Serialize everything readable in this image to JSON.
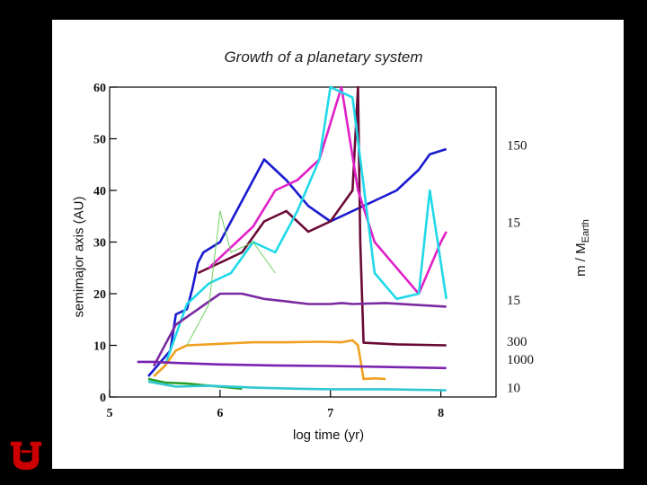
{
  "chart_data": {
    "type": "line",
    "title": "Growth of a planetary system",
    "xlabel": "log time (yr)",
    "ylabel": "semimajor axis (AU)",
    "y2label": "m / M",
    "y2label_sub": "Earth",
    "xlim": [
      5,
      8.5
    ],
    "ylim": [
      0,
      60
    ],
    "xticks": [
      5,
      6,
      7,
      8
    ],
    "yticks": [
      0,
      10,
      20,
      30,
      40,
      50,
      60
    ],
    "grid": false,
    "mass_annotations": [
      {
        "label": "150",
        "y": 49
      },
      {
        "label": "15",
        "y": 34
      },
      {
        "label": "15",
        "y": 19
      },
      {
        "label": "300",
        "y": 11
      },
      {
        "label": "1000",
        "y": 7.5
      },
      {
        "label": "10",
        "y": 2
      }
    ],
    "series": [
      {
        "name": "blue",
        "color": "#1a1ad0",
        "x": [
          5.35,
          5.55,
          5.6,
          5.7,
          5.75,
          5.8,
          5.85,
          6.0,
          6.1,
          6.2,
          6.4,
          6.6,
          6.8,
          7.0,
          7.2,
          7.4,
          7.6,
          7.8,
          7.9,
          8.05
        ],
        "y": [
          4,
          9,
          16,
          17,
          21,
          26,
          28,
          30,
          34,
          38,
          46,
          42,
          37,
          34,
          36,
          38,
          40,
          44,
          47,
          48
        ]
      },
      {
        "name": "darkred",
        "color": "#6a0a36",
        "x": [
          5.8,
          6.0,
          6.2,
          6.4,
          6.6,
          6.8,
          7.0,
          7.2,
          7.25,
          7.27,
          7.3,
          7.6,
          8.05
        ],
        "y": [
          24,
          26,
          28,
          34,
          36,
          32,
          34,
          40,
          60,
          30,
          10.5,
          10.2,
          10
        ]
      },
      {
        "name": "magenta",
        "color": "#e020c8",
        "x": [
          5.9,
          6.1,
          6.3,
          6.5,
          6.7,
          6.9,
          7.1,
          7.25,
          7.4,
          7.6,
          7.8,
          8.0,
          8.05
        ],
        "y": [
          25,
          29,
          33,
          40,
          42,
          46,
          60,
          40,
          30,
          25,
          20,
          30,
          32
        ]
      },
      {
        "name": "cyan",
        "color": "#20d8e8",
        "x": [
          5.5,
          5.7,
          5.9,
          6.1,
          6.3,
          6.5,
          6.7,
          6.9,
          7.0,
          7.2,
          7.4,
          7.6,
          7.8,
          7.9,
          8.05
        ],
        "y": [
          6,
          18,
          22,
          24,
          30,
          28,
          36,
          46,
          60,
          58,
          24,
          19,
          20,
          40,
          19
        ]
      },
      {
        "name": "purple",
        "color": "#7a2aa0",
        "x": [
          5.4,
          5.6,
          5.8,
          6.0,
          6.2,
          6.4,
          6.6,
          6.8,
          7.0,
          7.1,
          7.2,
          7.5,
          8.05
        ],
        "y": [
          6,
          14,
          17,
          20,
          20,
          19,
          18.5,
          18,
          18,
          18.2,
          18,
          18.2,
          17.5
        ]
      },
      {
        "name": "orange",
        "color": "#f0a020",
        "x": [
          5.4,
          5.5,
          5.6,
          5.7,
          6.0,
          6.3,
          6.6,
          6.9,
          7.1,
          7.2,
          7.25,
          7.3,
          7.4,
          7.5
        ],
        "y": [
          4,
          6,
          9,
          10,
          10.3,
          10.6,
          10.6,
          10.7,
          10.6,
          11,
          10,
          3.5,
          3.6,
          3.5
        ]
      },
      {
        "name": "violet",
        "color": "#7a22b0",
        "x": [
          5.25,
          5.4,
          5.6,
          6.0,
          6.5,
          7.0,
          7.5,
          8.05
        ],
        "y": [
          6.8,
          6.8,
          6.6,
          6.3,
          6.1,
          6.0,
          5.8,
          5.6
        ]
      },
      {
        "name": "green",
        "color": "#2aa02a",
        "x": [
          5.35,
          5.5,
          5.7,
          5.9,
          6.0,
          6.2
        ],
        "y": [
          3.5,
          2.8,
          2.6,
          2.2,
          2.0,
          1.6
        ]
      },
      {
        "name": "teal",
        "color": "#30c8d0",
        "x": [
          5.35,
          5.6,
          5.9,
          6.3,
          6.7,
          7.0,
          7.5,
          8.05
        ],
        "y": [
          3,
          2,
          2.2,
          1.8,
          1.6,
          1.5,
          1.5,
          1.3
        ]
      },
      {
        "name": "lightgreen",
        "color": "#70d060",
        "x": [
          5.7,
          5.9,
          6.0,
          6.1,
          6.3,
          6.5
        ],
        "y": [
          10,
          18,
          36,
          28,
          30,
          24
        ]
      }
    ]
  }
}
